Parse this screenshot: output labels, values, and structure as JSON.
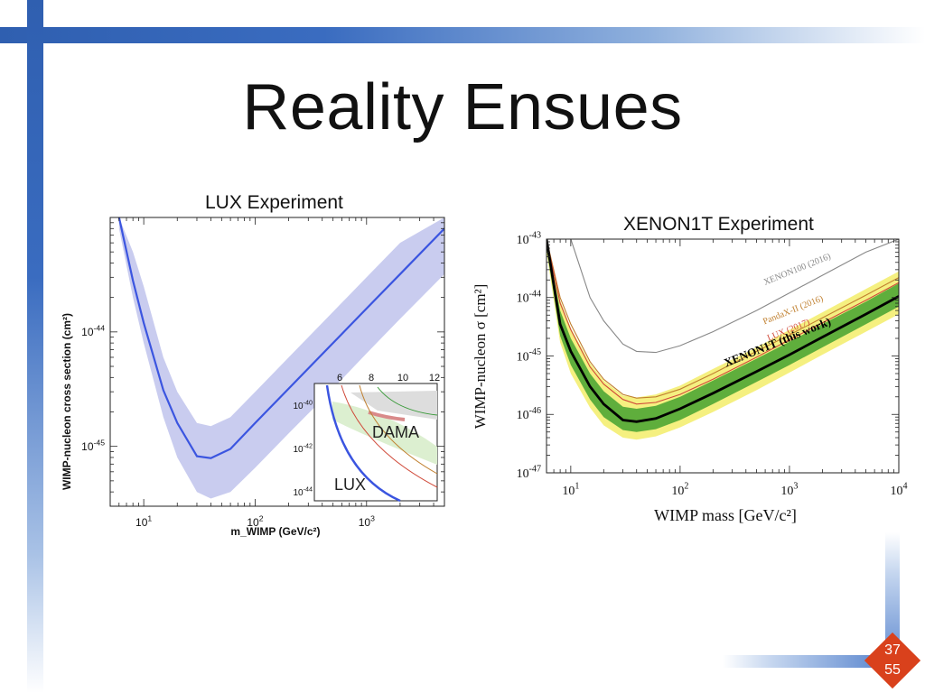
{
  "slide": {
    "title": "Reality Ensues",
    "page_number": "37",
    "page_total": "55"
  },
  "colors": {
    "bar_blue": "#2f5fb0",
    "badge": "#d9411c",
    "lux_band": "#c9ccef",
    "lux_limit": "#3b55e0",
    "xenon_1sigma": "#5fae3c",
    "xenon_2sigma": "#f5f080"
  },
  "chart_data": [
    {
      "type": "line",
      "title": "LUX Experiment",
      "xlabel": "m_WIMP (GeV/c²)",
      "ylabel": "WIMP-nucleon cross section (cm²)",
      "xscale": "log",
      "yscale": "log",
      "xlim": [
        5,
        5000
      ],
      "ylim": [
        3e-46,
        1e-43
      ],
      "xticks": [
        "10^1",
        "10^2",
        "10^3"
      ],
      "yticks": [
        "10^-44",
        "10^-45"
      ],
      "x": [
        6,
        8,
        10,
        15,
        20,
        30,
        40,
        60,
        100,
        200,
        500,
        1000,
        2000,
        5000
      ],
      "series": [
        {
          "name": "LUX",
          "color": "#3b55e0",
          "values": [
            1e-43,
            2.8e-44,
            1.2e-44,
            3.1e-45,
            1.6e-45,
            8.2e-46,
            7.9e-46,
            9.5e-46,
            1.6e-45,
            3.2e-45,
            8e-45,
            1.6e-44,
            3.2e-44,
            8e-44
          ]
        }
      ],
      "band": {
        "lower": [
          8e-44,
          2e-44,
          8e-45,
          1.8e-45,
          8e-46,
          4e-46,
          3.5e-46,
          4e-46,
          6.5e-46,
          1.3e-45,
          3.2e-45,
          6.5e-45,
          1.3e-44,
          3.2e-44
        ],
        "upper": [
          1e-43,
          5e-44,
          2.5e-44,
          6e-45,
          3e-45,
          1.6e-45,
          1.5e-45,
          1.8e-45,
          3e-45,
          6e-45,
          1.5e-44,
          3e-44,
          6e-44,
          1e-43
        ]
      },
      "inset": {
        "xticks": [
          "6",
          "8",
          "10",
          "12"
        ],
        "yticks": [
          "10^-40",
          "10^-42",
          "10^-44"
        ],
        "labels": [
          "DAMA",
          "LUX"
        ]
      }
    },
    {
      "type": "line",
      "title": "XENON1T Experiment",
      "xlabel": "WIMP mass [GeV/c²]",
      "ylabel": "WIMP-nucleon σ [cm²]",
      "xscale": "log",
      "yscale": "log",
      "xlim": [
        6,
        10000
      ],
      "ylim": [
        1e-47,
        1e-43
      ],
      "xticks": [
        "10^1",
        "10^2",
        "10^3",
        "10^4"
      ],
      "yticks": [
        "10^-43",
        "10^-44",
        "10^-45",
        "10^-46",
        "10^-47"
      ],
      "x": [
        6,
        8,
        10,
        15,
        20,
        30,
        40,
        60,
        100,
        200,
        500,
        1000,
        2000,
        5000,
        10000
      ],
      "series": [
        {
          "name": "XENON1T (this work)",
          "color": "#000000",
          "values": [
            1e-43,
            3.5e-45,
            1.2e-45,
            3e-46,
            1.5e-46,
            8e-47,
            7.5e-47,
            8.5e-47,
            1.25e-46,
            2.3e-46,
            5.4e-46,
            1.05e-45,
            2.1e-45,
            5.2e-45,
            1.05e-44
          ]
        },
        {
          "name": "LUX (2017)",
          "color": "#d04a3a",
          "values": [
            1e-43,
            8e-45,
            2.8e-45,
            6.5e-46,
            3.3e-46,
            1.8e-46,
            1.5e-46,
            1.6e-46,
            2.2e-46,
            4e-46,
            9.5e-46,
            1.9e-45,
            3.7e-45,
            9e-45,
            1.8e-44
          ]
        },
        {
          "name": "PandaX-II (2016)",
          "color": "#c08030",
          "values": [
            1e-43,
            1e-44,
            3.5e-45,
            8e-46,
            4e-46,
            2.2e-46,
            1.9e-46,
            2e-46,
            2.7e-46,
            5e-46,
            1.2e-45,
            2.3e-45,
            4.5e-45,
            1.1e-44,
            2.2e-44
          ]
        },
        {
          "name": "XENON100 (2016)",
          "color": "#888888",
          "values": [
            1e-43,
            1e-43,
            1e-43,
            1e-44,
            4e-45,
            1.6e-45,
            1.2e-45,
            1.15e-45,
            1.5e-45,
            2.6e-45,
            6e-45,
            1.2e-44,
            2.4e-44,
            6e-44,
            1e-43
          ]
        }
      ],
      "bands": {
        "one_sigma_lower": [
          7e-44,
          2.2e-45,
          7e-46,
          1.8e-46,
          9e-47,
          5.4e-47,
          5e-47,
          5.6e-47,
          8e-47,
          1.5e-46,
          3.6e-46,
          7e-46,
          1.4e-45,
          3.5e-45,
          7e-45
        ],
        "one_sigma_upper": [
          1e-43,
          6e-45,
          2e-45,
          5e-46,
          2.5e-46,
          1.35e-46,
          1.25e-46,
          1.4e-46,
          2e-46,
          3.8e-46,
          9e-46,
          1.75e-45,
          3.5e-45,
          8.5e-45,
          1.75e-44
        ],
        "two_sigma_lower": [
          6e-44,
          1.7e-45,
          5e-46,
          1.3e-46,
          6.5e-47,
          4e-47,
          3.7e-47,
          4.2e-47,
          6e-47,
          1.1e-46,
          2.6e-46,
          5.2e-46,
          1.05e-45,
          2.6e-45,
          5.2e-45
        ],
        "two_sigma_upper": [
          1e-43,
          9e-45,
          3e-45,
          7.5e-46,
          3.8e-46,
          2.1e-46,
          1.95e-46,
          2.2e-46,
          3.1e-46,
          6e-46,
          1.4e-45,
          2.8e-45,
          5.6e-45,
          1.4e-44,
          2.8e-44
        ]
      }
    }
  ]
}
